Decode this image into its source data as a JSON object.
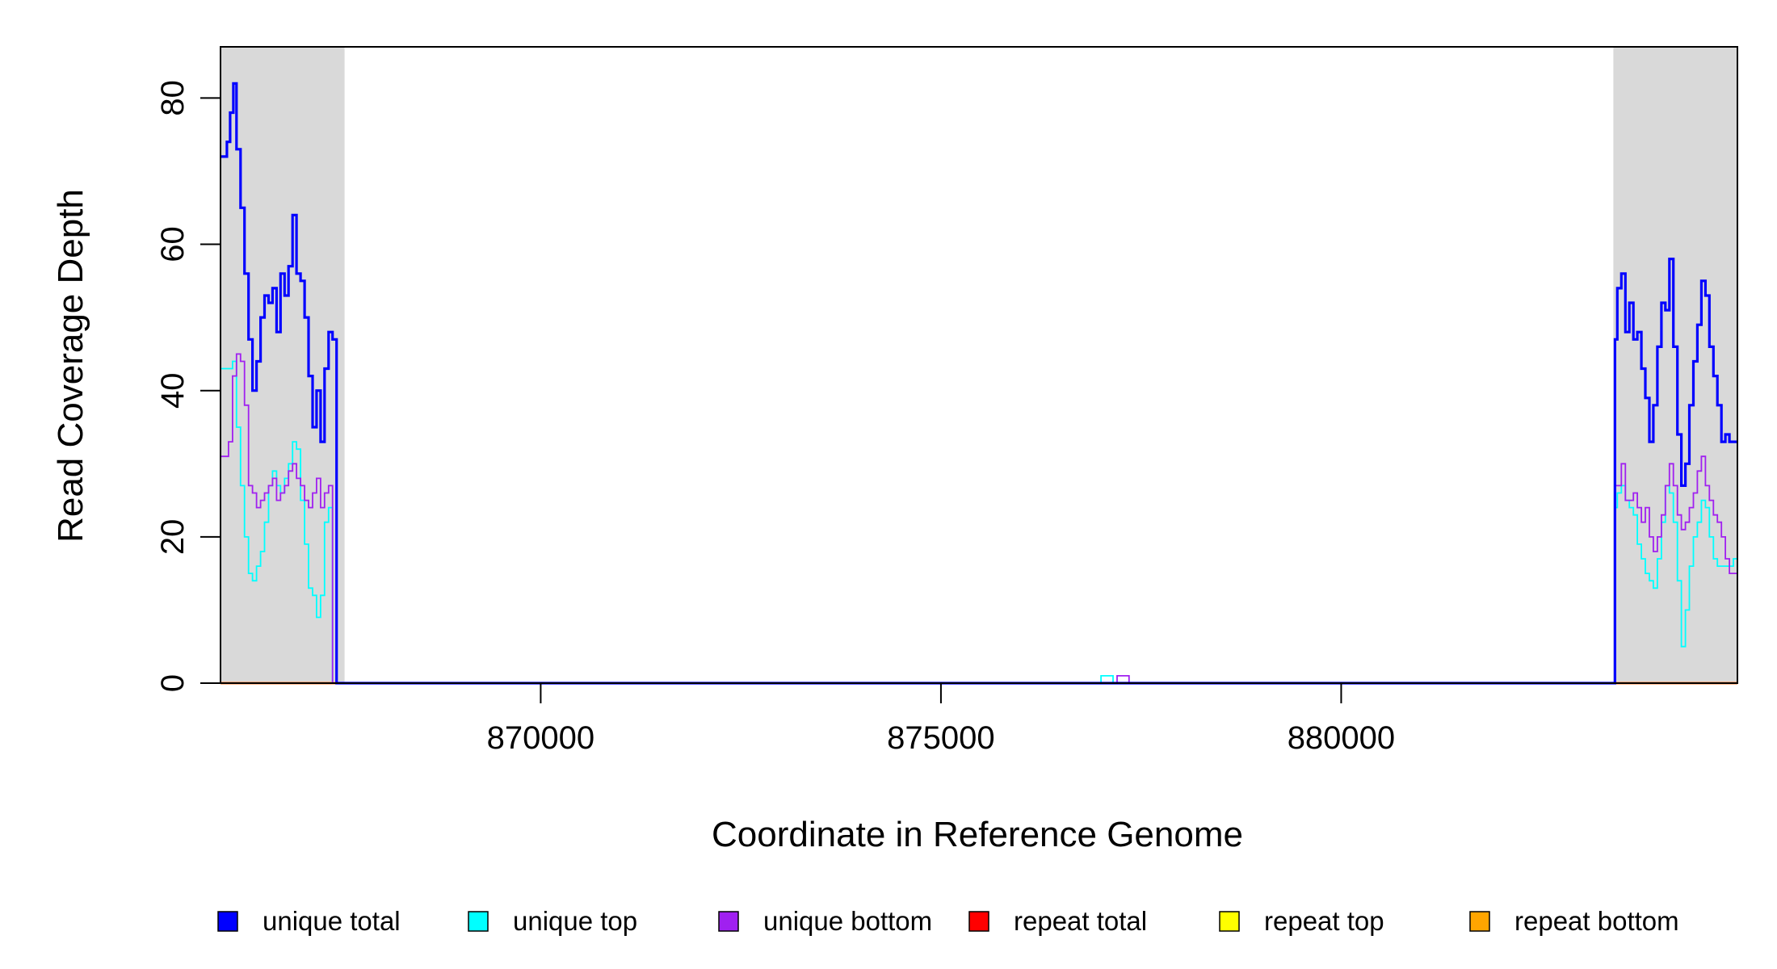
{
  "chart_data": {
    "type": "line",
    "xlabel": "Coordinate in Reference Genome",
    "ylabel": "Read Coverage Depth",
    "xlim": [
      866000,
      884950
    ],
    "ylim": [
      0,
      87
    ],
    "x_ticks": [
      870000,
      875000,
      880000
    ],
    "x_tick_labels": [
      "870000",
      "875000",
      "880000"
    ],
    "y_ticks": [
      0,
      20,
      40,
      60,
      80
    ],
    "y_tick_labels": [
      "0",
      "20",
      "40",
      "60",
      "80"
    ],
    "grid": false,
    "shaded_regions": [
      {
        "from": 866000,
        "to": 867550,
        "color": "#d9d9d9"
      },
      {
        "from": 883400,
        "to": 884950,
        "color": "#d9d9d9"
      }
    ],
    "legend": {
      "placement": "bottom",
      "entries": [
        {
          "label": "unique total",
          "color": "#0000ff"
        },
        {
          "label": "unique top",
          "color": "#00ffff"
        },
        {
          "label": "unique bottom",
          "color": "#a020f0"
        },
        {
          "label": "repeat total",
          "color": "#ff0000"
        },
        {
          "label": "repeat top",
          "color": "#ffff00"
        },
        {
          "label": "repeat bottom",
          "color": "#ffa500"
        }
      ]
    },
    "series": [
      {
        "name": "unique total",
        "color": "#0000ff",
        "x": [
          866000,
          866080,
          866120,
          866160,
          866200,
          866250,
          866300,
          866350,
          866400,
          866450,
          866500,
          866550,
          866600,
          866650,
          866700,
          866750,
          866800,
          866850,
          866900,
          866950,
          867000,
          867050,
          867100,
          867150,
          867200,
          867250,
          867300,
          867350,
          867400,
          867450,
          867500,
          867550,
          867570,
          867600,
          868000,
          870000,
          875000,
          876900,
          877000,
          877050,
          877100,
          877150,
          877200,
          877250,
          877300,
          877350,
          877400,
          877450,
          877500,
          880000,
          883000,
          883400,
          883420,
          883450,
          883500,
          883550,
          883600,
          883650,
          883700,
          883750,
          883800,
          883850,
          883900,
          883950,
          884000,
          884050,
          884100,
          884150,
          884200,
          884250,
          884300,
          884350,
          884400,
          884450,
          884500,
          884550,
          884600,
          884650,
          884700,
          884750,
          884800,
          884850,
          884900,
          884950
        ],
        "y": [
          72,
          74,
          78,
          82,
          73,
          65,
          56,
          47,
          40,
          44,
          50,
          53,
          52,
          54,
          48,
          56,
          53,
          57,
          64,
          56,
          55,
          50,
          42,
          35,
          40,
          33,
          43,
          48,
          47,
          0,
          0,
          0,
          0,
          0,
          0,
          0,
          0,
          0,
          0,
          0,
          0,
          0,
          0,
          0,
          0,
          0,
          0,
          0,
          0,
          0,
          0,
          0,
          47,
          54,
          56,
          48,
          52,
          47,
          48,
          43,
          39,
          33,
          38,
          46,
          52,
          51,
          58,
          46,
          34,
          27,
          30,
          38,
          44,
          49,
          55,
          53,
          46,
          42,
          38,
          33,
          34,
          33,
          33,
          33
        ]
      },
      {
        "name": "unique top",
        "color": "#00ffff",
        "x": [
          866000,
          866100,
          866150,
          866200,
          866250,
          866300,
          866350,
          866400,
          866450,
          866500,
          866550,
          866600,
          866650,
          866700,
          866750,
          866800,
          866850,
          866900,
          866950,
          867000,
          867050,
          867100,
          867150,
          867200,
          867250,
          867300,
          867350,
          867400,
          867450,
          867500,
          867550,
          867600,
          868000,
          870000,
          875000,
          876900,
          877000,
          877050,
          877100,
          877150,
          877200,
          877250,
          877300,
          877350,
          877400,
          877450,
          877500,
          880000,
          883000,
          883400,
          883420,
          883450,
          883500,
          883550,
          883600,
          883650,
          883700,
          883750,
          883800,
          883850,
          883900,
          883950,
          884000,
          884050,
          884100,
          884150,
          884200,
          884250,
          884300,
          884350,
          884400,
          884450,
          884500,
          884550,
          884600,
          884650,
          884700,
          884750,
          884800,
          884850,
          884900,
          884950
        ],
        "y": [
          43,
          43,
          44,
          35,
          27,
          20,
          15,
          14,
          16,
          18,
          22,
          27,
          29,
          27,
          26,
          28,
          30,
          33,
          32,
          25,
          19,
          13,
          12,
          9,
          12,
          22,
          24,
          0,
          0,
          0,
          0,
          0,
          0,
          0,
          0,
          0,
          1,
          1,
          1,
          0,
          0,
          0,
          0,
          0,
          0,
          0,
          0,
          0,
          0,
          0,
          24,
          26,
          27,
          25,
          24,
          23,
          19,
          17,
          15,
          14,
          13,
          17,
          22,
          27,
          26,
          22,
          14,
          5,
          10,
          16,
          20,
          22,
          25,
          24,
          20,
          17,
          16,
          16,
          16,
          16,
          17,
          18
        ]
      },
      {
        "name": "unique bottom",
        "color": "#a020f0",
        "x": [
          866000,
          866100,
          866150,
          866200,
          866250,
          866300,
          866350,
          866400,
          866450,
          866500,
          866550,
          866600,
          866650,
          866700,
          866750,
          866800,
          866850,
          866900,
          866950,
          867000,
          867050,
          867100,
          867150,
          867200,
          867250,
          867300,
          867350,
          867400,
          867450,
          867500,
          867550,
          867600,
          868000,
          870000,
          875000,
          876900,
          877000,
          877050,
          877100,
          877150,
          877200,
          877250,
          877300,
          877350,
          877400,
          877450,
          877500,
          880000,
          883000,
          883400,
          883420,
          883450,
          883500,
          883550,
          883600,
          883650,
          883700,
          883750,
          883800,
          883850,
          883900,
          883950,
          884000,
          884050,
          884100,
          884150,
          884200,
          884250,
          884300,
          884350,
          884400,
          884450,
          884500,
          884550,
          884600,
          884650,
          884700,
          884750,
          884800,
          884850,
          884900,
          884950
        ],
        "y": [
          31,
          33,
          42,
          45,
          44,
          38,
          27,
          26,
          24,
          25,
          26,
          27,
          28,
          25,
          26,
          27,
          29,
          30,
          28,
          27,
          25,
          24,
          26,
          28,
          24,
          26,
          27,
          0,
          0,
          0,
          0,
          0,
          0,
          0,
          0,
          0,
          0,
          0,
          0,
          0,
          1,
          1,
          1,
          0,
          0,
          0,
          0,
          0,
          0,
          0,
          27,
          27,
          30,
          25,
          25,
          26,
          24,
          22,
          24,
          20,
          18,
          20,
          23,
          27,
          30,
          27,
          23,
          21,
          22,
          24,
          26,
          29,
          31,
          27,
          25,
          23,
          22,
          20,
          17,
          15,
          15,
          15
        ]
      },
      {
        "name": "repeat total",
        "color": "#ff0000",
        "x": [
          866000,
          884950
        ],
        "y": [
          0,
          0
        ]
      },
      {
        "name": "repeat top",
        "color": "#ffff00",
        "x": [
          866000,
          884950
        ],
        "y": [
          0,
          0
        ]
      },
      {
        "name": "repeat bottom",
        "color": "#ffa500",
        "x": [
          866000,
          884950
        ],
        "y": [
          0,
          0
        ]
      }
    ]
  }
}
